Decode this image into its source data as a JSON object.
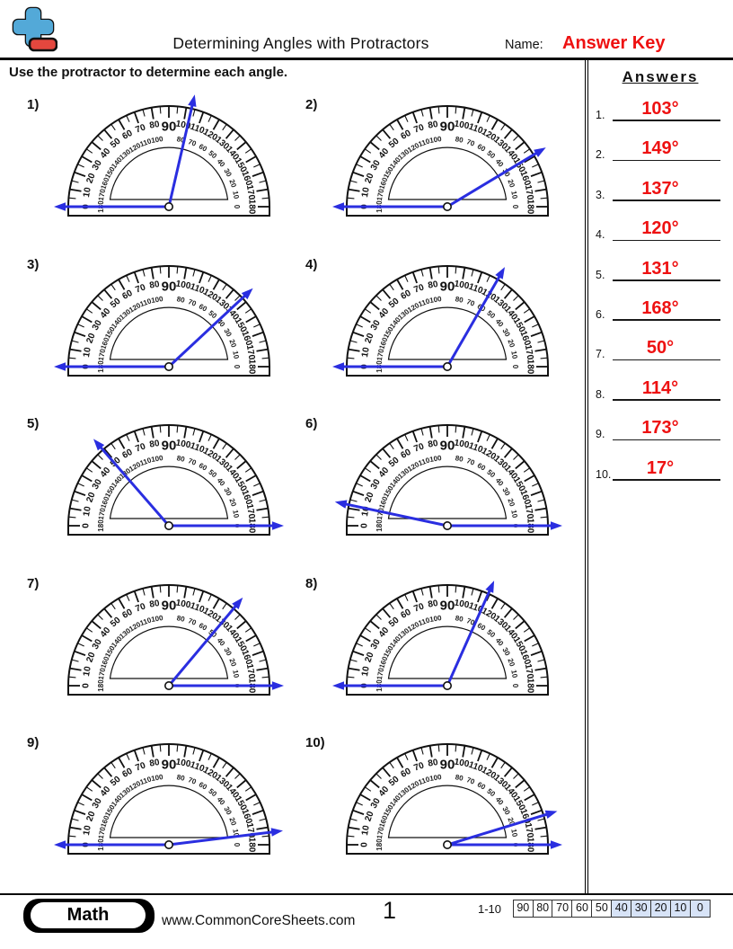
{
  "header": {
    "title": "Determining Angles with Protractors",
    "name_label": "Name:",
    "name_value": "Answer Key",
    "instruction": "Use the protractor to determine each angle.",
    "logo_colors": {
      "plus_blue": "#53a9d8",
      "minus_red": "#e4473e"
    }
  },
  "answers_panel": {
    "title": "Answers",
    "items": [
      {
        "num": "1.",
        "value": "103°"
      },
      {
        "num": "2.",
        "value": "149°"
      },
      {
        "num": "3.",
        "value": "137°"
      },
      {
        "num": "4.",
        "value": "120°"
      },
      {
        "num": "5.",
        "value": "131°"
      },
      {
        "num": "6.",
        "value": "168°"
      },
      {
        "num": "7.",
        "value": "50°"
      },
      {
        "num": "8.",
        "value": "114°"
      },
      {
        "num": "9.",
        "value": "173°"
      },
      {
        "num": "10.",
        "value": "17°"
      }
    ]
  },
  "problems": [
    {
      "label": "1)",
      "baseline_direction": "left",
      "ray_angle_deg": 77,
      "answer_deg": 103
    },
    {
      "label": "2)",
      "baseline_direction": "left",
      "ray_angle_deg": 31,
      "answer_deg": 149
    },
    {
      "label": "3)",
      "baseline_direction": "left",
      "ray_angle_deg": 43,
      "answer_deg": 137
    },
    {
      "label": "4)",
      "baseline_direction": "left",
      "ray_angle_deg": 60,
      "answer_deg": 120
    },
    {
      "label": "5)",
      "baseline_direction": "right",
      "ray_angle_deg": 131,
      "answer_deg": 131
    },
    {
      "label": "6)",
      "baseline_direction": "right",
      "ray_angle_deg": 168,
      "answer_deg": 168
    },
    {
      "label": "7)",
      "baseline_direction": "right",
      "ray_angle_deg": 50,
      "answer_deg": 50
    },
    {
      "label": "8)",
      "baseline_direction": "left",
      "ray_angle_deg": 66,
      "answer_deg": 114
    },
    {
      "label": "9)",
      "baseline_direction": "left",
      "ray_angle_deg": 7,
      "answer_deg": 173
    },
    {
      "label": "10)",
      "baseline_direction": "right",
      "ray_angle_deg": 17,
      "answer_deg": 17
    }
  ],
  "protractor_scale": {
    "outer_labels": [
      0,
      10,
      20,
      30,
      40,
      50,
      60,
      70,
      80,
      90,
      100,
      110,
      120,
      130,
      140,
      150,
      160,
      170,
      180
    ],
    "inner_labels": [
      180,
      170,
      160,
      150,
      140,
      130,
      120,
      110,
      100,
      90,
      80,
      70,
      60,
      50,
      40,
      30,
      20,
      10,
      0
    ],
    "tick_step_deg": 5,
    "major_tick_step_deg": 10
  },
  "colors": {
    "ray_blue": "#2a2ee0",
    "answer_red": "#ee1111",
    "score_highlight": "#d7e3f7",
    "outline_black": "#111111"
  },
  "footer": {
    "subject": "Math",
    "website": "www.CommonCoreSheets.com",
    "page_number": "1",
    "score_row": {
      "label": "1-10",
      "cells": [
        "90",
        "80",
        "70",
        "60",
        "50",
        "40",
        "30",
        "20",
        "10",
        "0"
      ],
      "highlighted_from_index": 5
    }
  }
}
